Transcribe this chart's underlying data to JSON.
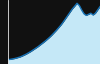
{
  "x": [
    0,
    1,
    2,
    3,
    4,
    5,
    6,
    7,
    8,
    9,
    10,
    11,
    12,
    13,
    14,
    15,
    16,
    17,
    18,
    19,
    20,
    21,
    22,
    23,
    24,
    25,
    26,
    27,
    28,
    29,
    30,
    31,
    32,
    33,
    34,
    35,
    36,
    37,
    38,
    39,
    40
  ],
  "y": [
    2,
    2.1,
    2.3,
    2.5,
    2.8,
    3.1,
    3.5,
    4.0,
    4.5,
    5.1,
    5.7,
    6.4,
    7.1,
    7.8,
    8.6,
    9.4,
    10.2,
    11.1,
    12.0,
    13.0,
    14.1,
    15.2,
    16.4,
    17.6,
    19.0,
    20.5,
    22.0,
    23.5,
    25.0,
    26.2,
    27.5,
    26.5,
    24.5,
    22.8,
    22.0,
    22.5,
    23.0,
    22.2,
    23.0,
    24.5,
    26.0
  ],
  "line_color": "#1874b8",
  "fill_color": "#c5e8f7",
  "background_color": "#111111",
  "linewidth": 1.0,
  "ylim": [
    0,
    29
  ],
  "xlim": [
    0,
    40
  ]
}
